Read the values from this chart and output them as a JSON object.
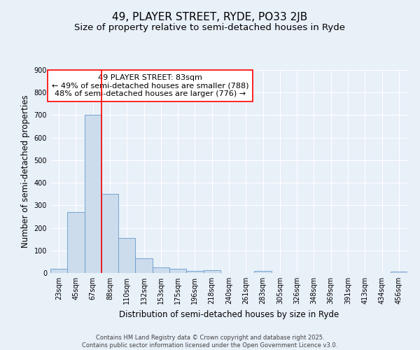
{
  "title": "49, PLAYER STREET, RYDE, PO33 2JB",
  "subtitle": "Size of property relative to semi-detached houses in Ryde",
  "xlabel": "Distribution of semi-detached houses by size in Ryde",
  "ylabel": "Number of semi-detached properties",
  "bar_labels": [
    "23sqm",
    "45sqm",
    "67sqm",
    "88sqm",
    "110sqm",
    "132sqm",
    "153sqm",
    "175sqm",
    "196sqm",
    "218sqm",
    "240sqm",
    "261sqm",
    "283sqm",
    "305sqm",
    "326sqm",
    "348sqm",
    "369sqm",
    "391sqm",
    "413sqm",
    "434sqm",
    "456sqm"
  ],
  "bar_values": [
    20,
    270,
    700,
    350,
    155,
    65,
    25,
    20,
    10,
    13,
    0,
    0,
    10,
    0,
    0,
    0,
    0,
    0,
    0,
    0,
    5
  ],
  "bar_color": "#ccdcec",
  "bar_edge_color": "#6699cc",
  "vline_color": "red",
  "annotation_text": "49 PLAYER STREET: 83sqm\n← 49% of semi-detached houses are smaller (788)\n48% of semi-detached houses are larger (776) →",
  "annotation_box_color": "white",
  "annotation_box_edge": "red",
  "ylim": [
    0,
    900
  ],
  "yticks": [
    0,
    100,
    200,
    300,
    400,
    500,
    600,
    700,
    800,
    900
  ],
  "background_color": "#e8f0f8",
  "grid_color": "white",
  "footer_line1": "Contains HM Land Registry data © Crown copyright and database right 2025.",
  "footer_line2": "Contains public sector information licensed under the Open Government Licence v3.0.",
  "title_fontsize": 11,
  "subtitle_fontsize": 9.5,
  "axis_label_fontsize": 8.5,
  "tick_fontsize": 7,
  "annotation_fontsize": 8,
  "footer_fontsize": 6
}
